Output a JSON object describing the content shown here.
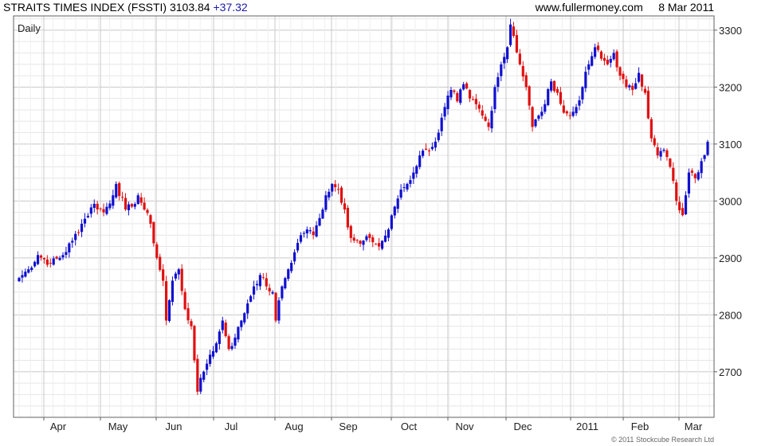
{
  "header": {
    "title": "STRAITS TIMES INDEX (FSSTI) 3103.84",
    "change": "+37.32",
    "source": "www.fullermoney.com",
    "date": "8 Mar 2011"
  },
  "footer": {
    "copyright": "© 2011 Stockcube Research Ltd"
  },
  "colors": {
    "up": "#1010d0",
    "down": "#e01010",
    "grid": "#c8c8c8",
    "frame": "#606060",
    "accent": "#1a1aa8"
  },
  "chart_data": {
    "type": "candlestick",
    "period_label": "Daily",
    "ylim": [
      2620,
      3325
    ],
    "yticks": [
      2700,
      2800,
      2900,
      3000,
      3100,
      3200,
      3300
    ],
    "grid": true,
    "x_tick_labels": [
      "Apr",
      "May",
      "Jun",
      "Jul",
      "Aug",
      "Sep",
      "Oct",
      "Nov",
      "Dec",
      "2011",
      "Feb",
      "Mar"
    ],
    "close_path": [
      [
        0,
        2865
      ],
      [
        3,
        2880
      ],
      [
        6,
        2905
      ],
      [
        10,
        2890
      ],
      [
        14,
        2905
      ],
      [
        17,
        2930
      ],
      [
        20,
        2960
      ],
      [
        24,
        2995
      ],
      [
        27,
        2980
      ],
      [
        30,
        3010
      ],
      [
        31,
        3030
      ],
      [
        34,
        2985
      ],
      [
        36,
        2990
      ],
      [
        38,
        3010
      ],
      [
        40,
        2985
      ],
      [
        42,
        2960
      ],
      [
        44,
        2900
      ],
      [
        46,
        2860
      ],
      [
        47,
        2790
      ],
      [
        49,
        2860
      ],
      [
        51,
        2880
      ],
      [
        53,
        2810
      ],
      [
        55,
        2780
      ],
      [
        56,
        2720
      ],
      [
        57,
        2665
      ],
      [
        59,
        2700
      ],
      [
        61,
        2730
      ],
      [
        63,
        2750
      ],
      [
        65,
        2790
      ],
      [
        67,
        2740
      ],
      [
        69,
        2760
      ],
      [
        71,
        2790
      ],
      [
        73,
        2820
      ],
      [
        75,
        2850
      ],
      [
        77,
        2870
      ],
      [
        79,
        2850
      ],
      [
        81,
        2840
      ],
      [
        82,
        2790
      ],
      [
        84,
        2850
      ],
      [
        86,
        2880
      ],
      [
        88,
        2910
      ],
      [
        90,
        2940
      ],
      [
        92,
        2950
      ],
      [
        94,
        2940
      ],
      [
        96,
        2970
      ],
      [
        98,
        3010
      ],
      [
        100,
        3030
      ],
      [
        102,
        3020
      ],
      [
        104,
        2985
      ],
      [
        106,
        2935
      ],
      [
        109,
        2925
      ],
      [
        112,
        2935
      ],
      [
        115,
        2920
      ],
      [
        118,
        2950
      ],
      [
        120,
        2990
      ],
      [
        122,
        3020
      ],
      [
        124,
        3030
      ],
      [
        126,
        3050
      ],
      [
        128,
        3080
      ],
      [
        130,
        3090
      ],
      [
        132,
        3095
      ],
      [
        134,
        3120
      ],
      [
        136,
        3165
      ],
      [
        138,
        3195
      ],
      [
        140,
        3175
      ],
      [
        142,
        3205
      ],
      [
        144,
        3180
      ],
      [
        146,
        3170
      ],
      [
        148,
        3150
      ],
      [
        150,
        3130
      ],
      [
        152,
        3200
      ],
      [
        154,
        3240
      ],
      [
        156,
        3270
      ],
      [
        157,
        3310
      ],
      [
        158,
        3290
      ],
      [
        160,
        3240
      ],
      [
        162,
        3200
      ],
      [
        164,
        3130
      ],
      [
        166,
        3150
      ],
      [
        168,
        3170
      ],
      [
        170,
        3210
      ],
      [
        172,
        3190
      ],
      [
        174,
        3155
      ],
      [
        176,
        3150
      ],
      [
        178,
        3165
      ],
      [
        180,
        3200
      ],
      [
        182,
        3240
      ],
      [
        184,
        3270
      ],
      [
        186,
        3250
      ],
      [
        188,
        3240
      ],
      [
        190,
        3260
      ],
      [
        192,
        3220
      ],
      [
        194,
        3200
      ],
      [
        196,
        3195
      ],
      [
        198,
        3225
      ],
      [
        200,
        3190
      ],
      [
        202,
        3110
      ],
      [
        204,
        3080
      ],
      [
        206,
        3090
      ],
      [
        208,
        3060
      ],
      [
        210,
        3000
      ],
      [
        212,
        2975
      ],
      [
        213,
        3010
      ],
      [
        214,
        3050
      ],
      [
        216,
        3040
      ],
      [
        218,
        3070
      ],
      [
        220,
        3104
      ]
    ]
  }
}
